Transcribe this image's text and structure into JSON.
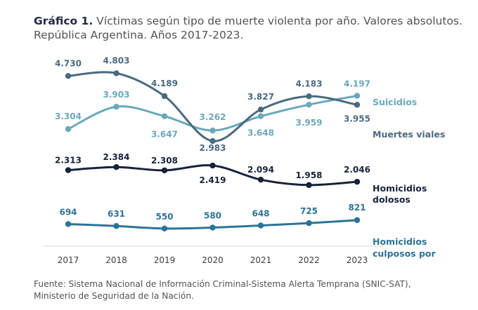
{
  "title_bold": "Gráfico 1.",
  "title_rest": " Víctimas según tipo de muerte violenta por año. Valores absolutos. República Argentina. Años 2017-2023.",
  "source_line1": "Fuente: Sistema Nacional de Información Criminal-Sistema Alerta Temprana (SNIC-SAT),",
  "source_line2": "Ministerio de Seguridad de la Nación.",
  "chart_data": {
    "type": "line",
    "title": "Víctimas según tipo de muerte violenta por año. Valores absolutos. República Argentina. Años 2017-2023.",
    "x": [
      "2017",
      "2018",
      "2019",
      "2020",
      "2021",
      "2022",
      "2023"
    ],
    "ylim": [
      0,
      5000
    ],
    "grid": false,
    "legend": "labels at right end of each line",
    "series": [
      {
        "name": "Suicidios",
        "color": "#6aa8bb",
        "values": [
          3304,
          3903,
          3647,
          3262,
          3648,
          3959,
          4197
        ],
        "labels": [
          "3.304",
          "3.903",
          "3.647",
          "3.262",
          "3.648",
          "3.959",
          "4.197"
        ]
      },
      {
        "name": "Muertes viales",
        "color": "#4a6a80",
        "values": [
          4730,
          4803,
          4189,
          2983,
          3827,
          4183,
          3955
        ],
        "labels": [
          "4.730",
          "4.803",
          "4.189",
          "2.983",
          "3.827",
          "4.183",
          "3.955"
        ]
      },
      {
        "name": "Homicidios dolosos",
        "color": "#17223b",
        "values": [
          2313,
          2384,
          2308,
          2419,
          2094,
          1958,
          2046
        ],
        "labels": [
          "2.313",
          "2.384",
          "2.308",
          "2.419",
          "2.094",
          "1.958",
          "2.046"
        ]
      },
      {
        "name": "Homicidios culposos por",
        "color": "#2d7397",
        "values": [
          694,
          631,
          550,
          580,
          648,
          725,
          821
        ],
        "labels": [
          "694",
          "631",
          "550",
          "580",
          "648",
          "725",
          "821"
        ]
      }
    ]
  }
}
